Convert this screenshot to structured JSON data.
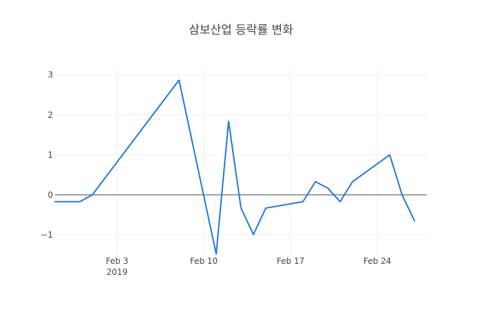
{
  "chart_data": {
    "type": "line",
    "title": "삼보산업 등락률 변화",
    "xlabel": "",
    "ylabel": "",
    "grid": true,
    "xlim": [
      "2019-01-29",
      "2019-02-28"
    ],
    "ylim": [
      -1.5,
      3.15
    ],
    "x_ticks": [
      {
        "value": "2019-02-03",
        "label": "Feb 3",
        "sublabel": "2019"
      },
      {
        "value": "2019-02-10",
        "label": "Feb 10",
        "sublabel": ""
      },
      {
        "value": "2019-02-17",
        "label": "Feb 17",
        "sublabel": ""
      },
      {
        "value": "2019-02-24",
        "label": "Feb 24",
        "sublabel": ""
      }
    ],
    "y_ticks": [
      {
        "value": 3,
        "label": "3"
      },
      {
        "value": 2,
        "label": "2"
      },
      {
        "value": 1,
        "label": "1"
      },
      {
        "value": 0,
        "label": "0"
      },
      {
        "value": -1,
        "label": "−1"
      }
    ],
    "series": [
      {
        "color": "#1f77e0",
        "points": [
          {
            "x": "2019-01-29",
            "y": -0.17
          },
          {
            "x": "2019-01-31",
            "y": -0.17
          },
          {
            "x": "2019-02-01",
            "y": 0.0
          },
          {
            "x": "2019-02-08",
            "y": 2.87
          },
          {
            "x": "2019-02-11",
            "y": -1.48
          },
          {
            "x": "2019-02-12",
            "y": 1.84
          },
          {
            "x": "2019-02-13",
            "y": -0.33
          },
          {
            "x": "2019-02-14",
            "y": -0.99
          },
          {
            "x": "2019-02-15",
            "y": -0.33
          },
          {
            "x": "2019-02-18",
            "y": -0.17
          },
          {
            "x": "2019-02-19",
            "y": 0.33
          },
          {
            "x": "2019-02-20",
            "y": 0.17
          },
          {
            "x": "2019-02-21",
            "y": -0.17
          },
          {
            "x": "2019-02-22",
            "y": 0.33
          },
          {
            "x": "2019-02-25",
            "y": 1.0
          },
          {
            "x": "2019-02-26",
            "y": 0.0
          },
          {
            "x": "2019-02-27",
            "y": -0.65
          }
        ]
      }
    ]
  }
}
